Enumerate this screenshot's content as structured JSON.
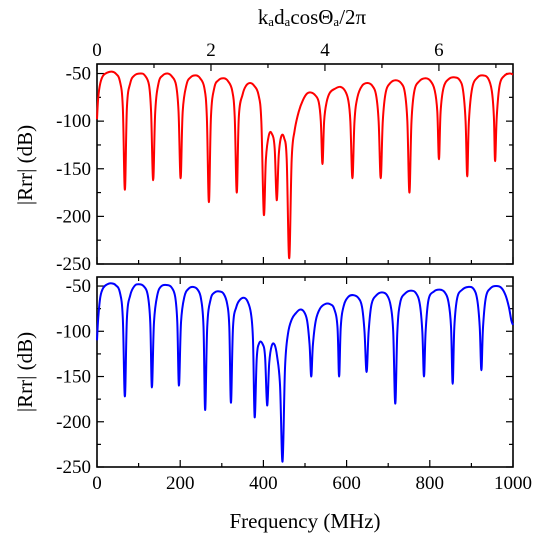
{
  "chart_data": [
    {
      "type": "line",
      "xlabel": "",
      "top_axis_label": "kₐdₐcosΘₐ/2π",
      "top_axis_ticks": [
        "0",
        "2",
        "4",
        "6"
      ],
      "ylabel": "|Rrr| (dB)",
      "xlim": [
        0,
        1000
      ],
      "ylim": [
        -250,
        -40
      ],
      "yticks": [
        -50,
        -100,
        -150,
        -200,
        -250
      ],
      "grid": false,
      "series": [
        {
          "color": "#ff0000",
          "anchors": [
            [
              0,
              -98
            ],
            [
              3,
              -75
            ],
            [
              8,
              -60
            ],
            [
              15,
              -52
            ],
            [
              25,
              -49
            ],
            [
              35,
              -48
            ],
            [
              45,
              -50
            ],
            [
              55,
              -58
            ],
            [
              62,
              -85
            ],
            [
              67,
              -172
            ],
            [
              72,
              -85
            ],
            [
              80,
              -60
            ],
            [
              90,
              -52
            ],
            [
              105,
              -50
            ],
            [
              115,
              -52
            ],
            [
              125,
              -62
            ],
            [
              130,
              -90
            ],
            [
              135,
              -162
            ],
            [
              140,
              -90
            ],
            [
              148,
              -60
            ],
            [
              158,
              -52
            ],
            [
              170,
              -50
            ],
            [
              180,
              -53
            ],
            [
              190,
              -62
            ],
            [
              196,
              -90
            ],
            [
              201,
              -160
            ],
            [
              206,
              -90
            ],
            [
              215,
              -62
            ],
            [
              225,
              -54
            ],
            [
              238,
              -52
            ],
            [
              248,
              -55
            ],
            [
              258,
              -65
            ],
            [
              264,
              -95
            ],
            [
              269,
              -185
            ],
            [
              274,
              -95
            ],
            [
              282,
              -65
            ],
            [
              292,
              -57
            ],
            [
              305,
              -55
            ],
            [
              315,
              -58
            ],
            [
              325,
              -68
            ],
            [
              331,
              -95
            ],
            [
              336,
              -175
            ],
            [
              341,
              -95
            ],
            [
              350,
              -72
            ],
            [
              358,
              -63
            ],
            [
              368,
              -60
            ],
            [
              378,
              -63
            ],
            [
              388,
              -72
            ],
            [
              395,
              -100
            ],
            [
              401,
              -198
            ],
            [
              406,
              -140
            ],
            [
              413,
              -115
            ],
            [
              420,
              -113
            ],
            [
              427,
              -128
            ],
            [
              432,
              -183
            ],
            [
              437,
              -135
            ],
            [
              443,
              -116
            ],
            [
              450,
              -118
            ],
            [
              456,
              -140
            ],
            [
              462,
              -244
            ],
            [
              468,
              -140
            ],
            [
              475,
              -110
            ],
            [
              485,
              -90
            ],
            [
              495,
              -78
            ],
            [
              505,
              -71
            ],
            [
              515,
              -70
            ],
            [
              525,
              -73
            ],
            [
              533,
              -80
            ],
            [
              538,
              -100
            ],
            [
              542,
              -145
            ],
            [
              546,
              -100
            ],
            [
              552,
              -80
            ],
            [
              560,
              -70
            ],
            [
              572,
              -66
            ],
            [
              585,
              -64
            ],
            [
              596,
              -68
            ],
            [
              604,
              -78
            ],
            [
              609,
              -100
            ],
            [
              614,
              -160
            ],
            [
              619,
              -100
            ],
            [
              626,
              -75
            ],
            [
              637,
              -63
            ],
            [
              650,
              -60
            ],
            [
              662,
              -63
            ],
            [
              671,
              -73
            ],
            [
              677,
              -100
            ],
            [
              682,
              -160
            ],
            [
              687,
              -100
            ],
            [
              694,
              -70
            ],
            [
              705,
              -60
            ],
            [
              718,
              -57
            ],
            [
              731,
              -60
            ],
            [
              740,
              -70
            ],
            [
              746,
              -100
            ],
            [
              751,
              -175
            ],
            [
              756,
              -100
            ],
            [
              763,
              -68
            ],
            [
              775,
              -58
            ],
            [
              790,
              -55
            ],
            [
              802,
              -58
            ],
            [
              812,
              -68
            ],
            [
              818,
              -90
            ],
            [
              822,
              -140
            ],
            [
              826,
              -90
            ],
            [
              833,
              -65
            ],
            [
              845,
              -56
            ],
            [
              860,
              -54
            ],
            [
              872,
              -57
            ],
            [
              880,
              -68
            ],
            [
              886,
              -100
            ],
            [
              890,
              -158
            ],
            [
              894,
              -100
            ],
            [
              902,
              -65
            ],
            [
              915,
              -54
            ],
            [
              928,
              -52
            ],
            [
              940,
              -55
            ],
            [
              949,
              -68
            ],
            [
              954,
              -95
            ],
            [
              957,
              -142
            ],
            [
              961,
              -95
            ],
            [
              968,
              -62
            ],
            [
              980,
              -52
            ],
            [
              992,
              -50
            ],
            [
              1000,
              -51
            ]
          ]
        }
      ]
    },
    {
      "type": "line",
      "xlabel": "Frequency (MHz)",
      "xticks": [
        0,
        200,
        400,
        600,
        800,
        1000
      ],
      "ylabel": "|Rrr| (dB)",
      "xlim": [
        0,
        1000
      ],
      "ylim": [
        -250,
        -40
      ],
      "yticks": [
        -50,
        -100,
        -150,
        -200,
        -250
      ],
      "grid": false,
      "series": [
        {
          "color": "#0000ff",
          "anchors": [
            [
              0,
              -110
            ],
            [
              3,
              -85
            ],
            [
              8,
              -62
            ],
            [
              15,
              -52
            ],
            [
              25,
              -48
            ],
            [
              35,
              -47
            ],
            [
              45,
              -49
            ],
            [
              55,
              -57
            ],
            [
              62,
              -85
            ],
            [
              67,
              -172
            ],
            [
              72,
              -85
            ],
            [
              80,
              -60
            ],
            [
              90,
              -50
            ],
            [
              100,
              -48
            ],
            [
              112,
              -50
            ],
            [
              122,
              -60
            ],
            [
              128,
              -90
            ],
            [
              132,
              -162
            ],
            [
              137,
              -90
            ],
            [
              145,
              -60
            ],
            [
              155,
              -50
            ],
            [
              170,
              -49
            ],
            [
              180,
              -52
            ],
            [
              188,
              -62
            ],
            [
              193,
              -90
            ],
            [
              197,
              -160
            ],
            [
              202,
              -90
            ],
            [
              210,
              -62
            ],
            [
              220,
              -53
            ],
            [
              232,
              -51
            ],
            [
              242,
              -54
            ],
            [
              250,
              -64
            ],
            [
              256,
              -95
            ],
            [
              260,
              -187
            ],
            [
              265,
              -95
            ],
            [
              273,
              -65
            ],
            [
              283,
              -57
            ],
            [
              295,
              -56
            ],
            [
              305,
              -59
            ],
            [
              313,
              -70
            ],
            [
              318,
              -95
            ],
            [
              322,
              -179
            ],
            [
              327,
              -95
            ],
            [
              335,
              -73
            ],
            [
              344,
              -65
            ],
            [
              354,
              -63
            ],
            [
              362,
              -67
            ],
            [
              370,
              -80
            ],
            [
              375,
              -110
            ],
            [
              379,
              -195
            ],
            [
              384,
              -130
            ],
            [
              390,
              -113
            ],
            [
              398,
              -114
            ],
            [
              404,
              -128
            ],
            [
              409,
              -182
            ],
            [
              414,
              -135
            ],
            [
              420,
              -116
            ],
            [
              427,
              -115
            ],
            [
              433,
              -128
            ],
            [
              440,
              -160
            ],
            [
              446,
              -244
            ],
            [
              452,
              -140
            ],
            [
              459,
              -103
            ],
            [
              468,
              -87
            ],
            [
              478,
              -80
            ],
            [
              488,
              -76
            ],
            [
              497,
              -78
            ],
            [
              505,
              -88
            ],
            [
              511,
              -115
            ],
            [
              515,
              -150
            ],
            [
              519,
              -115
            ],
            [
              526,
              -88
            ],
            [
              536,
              -75
            ],
            [
              548,
              -70
            ],
            [
              560,
              -70
            ],
            [
              570,
              -75
            ],
            [
              578,
              -95
            ],
            [
              582,
              -150
            ],
            [
              586,
              -95
            ],
            [
              593,
              -72
            ],
            [
              604,
              -62
            ],
            [
              616,
              -60
            ],
            [
              628,
              -63
            ],
            [
              637,
              -73
            ],
            [
              643,
              -100
            ],
            [
              648,
              -145
            ],
            [
              653,
              -100
            ],
            [
              660,
              -70
            ],
            [
              672,
              -60
            ],
            [
              685,
              -57
            ],
            [
              697,
              -60
            ],
            [
              706,
              -72
            ],
            [
              712,
              -100
            ],
            [
              717,
              -180
            ],
            [
              722,
              -100
            ],
            [
              729,
              -68
            ],
            [
              741,
              -58
            ],
            [
              755,
              -55
            ],
            [
              767,
              -58
            ],
            [
              776,
              -70
            ],
            [
              782,
              -100
            ],
            [
              786,
              -150
            ],
            [
              790,
              -100
            ],
            [
              797,
              -65
            ],
            [
              810,
              -56
            ],
            [
              824,
              -54
            ],
            [
              836,
              -57
            ],
            [
              845,
              -68
            ],
            [
              851,
              -95
            ],
            [
              855,
              -158
            ],
            [
              859,
              -95
            ],
            [
              866,
              -63
            ],
            [
              878,
              -54
            ],
            [
              892,
              -51
            ],
            [
              905,
              -53
            ],
            [
              914,
              -65
            ],
            [
              920,
              -95
            ],
            [
              924,
              -143
            ],
            [
              928,
              -95
            ],
            [
              935,
              -62
            ],
            [
              947,
              -52
            ],
            [
              960,
              -50
            ],
            [
              972,
              -52
            ],
            [
              982,
              -60
            ],
            [
              990,
              -73
            ],
            [
              996,
              -88
            ],
            [
              1000,
              -93
            ]
          ]
        }
      ]
    }
  ]
}
